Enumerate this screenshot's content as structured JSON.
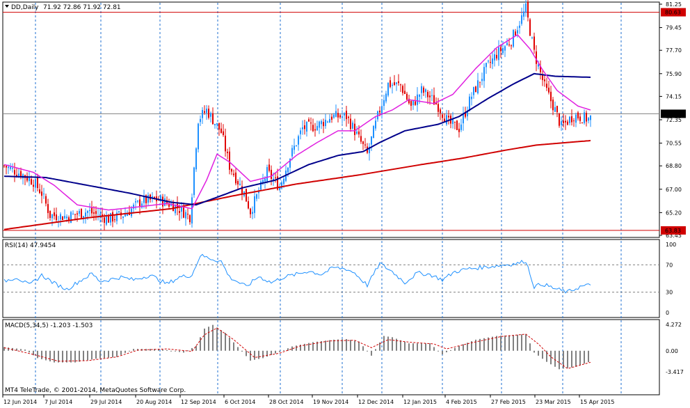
{
  "header": {
    "symbol": "DD,Daily",
    "ohlc": "71.92 72.86 71.92 72.81"
  },
  "copyright": "MT4 TeleTrade, © 2001-2014, MetaQuotes Software Corp.",
  "colors": {
    "bull": "#1e90ff",
    "bear": "#e00000",
    "ma_fast": "#e020e0",
    "ma_mid": "#00008b",
    "ma_slow": "#d00000",
    "rsi": "#1e90ff",
    "macd_hist": "#808080",
    "macd_signal": "#d00000",
    "hline": "#d00000",
    "grid": "#1e6fd0"
  },
  "chart_data": [
    {
      "type": "candlestick",
      "title": "DD,Daily",
      "y_ticks": [
        "81.25",
        "79.45",
        "77.70",
        "75.90",
        "74.15",
        "72.35",
        "70.55",
        "68.80",
        "67.00",
        "65.20",
        "63.45"
      ],
      "ylim": [
        63.45,
        81.25
      ],
      "price_labels": [
        {
          "name": "upper-level",
          "value": "80.63"
        },
        {
          "name": "current-price",
          "value": "72.81"
        },
        {
          "name": "lower-level",
          "value": "63.83"
        }
      ],
      "x_labels": [
        "12 Jun 2014",
        "7 Jul 2014",
        "29 Jul 2014",
        "20 Aug 2014",
        "12 Sep 2014",
        "6 Oct 2014",
        "28 Oct 2014",
        "19 Nov 2014",
        "12 Dec 2014",
        "12 Jan 2015",
        "4 Feb 2015",
        "27 Feb 2015",
        "23 Mar 2015",
        "15 Apr 2015"
      ],
      "price_path": [
        [
          0,
          68.8
        ],
        [
          8,
          68.2
        ],
        [
          14,
          67.6
        ],
        [
          18,
          66.7
        ],
        [
          22,
          65.0
        ],
        [
          30,
          64.9
        ],
        [
          40,
          65.3
        ],
        [
          50,
          64.7
        ],
        [
          58,
          65.1
        ],
        [
          66,
          66.1
        ],
        [
          74,
          66.2
        ],
        [
          82,
          65.7
        ],
        [
          89,
          64.9
        ],
        [
          93,
          72.4
        ],
        [
          97,
          73.1
        ],
        [
          104,
          71.4
        ],
        [
          108,
          68.8
        ],
        [
          115,
          66.7
        ],
        [
          118,
          65.3
        ],
        [
          126,
          68.3
        ],
        [
          132,
          67.2
        ],
        [
          137,
          69.5
        ],
        [
          143,
          71.7
        ],
        [
          150,
          71.9
        ],
        [
          157,
          72.6
        ],
        [
          164,
          72.6
        ],
        [
          167,
          71.8
        ],
        [
          174,
          69.7
        ],
        [
          179,
          72.6
        ],
        [
          184,
          75.1
        ],
        [
          190,
          75.0
        ],
        [
          195,
          73.3
        ],
        [
          200,
          74.6
        ],
        [
          204,
          74.1
        ],
        [
          208,
          73.4
        ],
        [
          213,
          72.1
        ],
        [
          218,
          71.7
        ],
        [
          224,
          74.2
        ],
        [
          231,
          76.3
        ],
        [
          236,
          77.4
        ],
        [
          243,
          78.5
        ],
        [
          250,
          80.9
        ],
        [
          254,
          77.5
        ],
        [
          259,
          74.9
        ],
        [
          264,
          73.1
        ],
        [
          267,
          71.8
        ],
        [
          273,
          72.7
        ],
        [
          280,
          72.4
        ],
        [
          285,
          72.8
        ]
      ],
      "ma_fast_path": [
        [
          0,
          68.9
        ],
        [
          14,
          68.3
        ],
        [
          24,
          67.3
        ],
        [
          35,
          65.8
        ],
        [
          50,
          65.4
        ],
        [
          62,
          65.6
        ],
        [
          78,
          65.9
        ],
        [
          90,
          65.5
        ],
        [
          97,
          67.7
        ],
        [
          102,
          69.7
        ],
        [
          108,
          69.1
        ],
        [
          118,
          67.6
        ],
        [
          128,
          68.0
        ],
        [
          140,
          69.6
        ],
        [
          150,
          70.6
        ],
        [
          160,
          71.5
        ],
        [
          168,
          71.5
        ],
        [
          178,
          72.6
        ],
        [
          186,
          73.1
        ],
        [
          194,
          73.9
        ],
        [
          206,
          73.6
        ],
        [
          215,
          74.3
        ],
        [
          226,
          76.3
        ],
        [
          236,
          77.9
        ],
        [
          246,
          78.9
        ],
        [
          252,
          77.8
        ],
        [
          258,
          76.2
        ],
        [
          265,
          74.6
        ],
        [
          275,
          73.4
        ],
        [
          285,
          72.9
        ]
      ],
      "ma_mid_path": [
        [
          0,
          68.0
        ],
        [
          20,
          67.9
        ],
        [
          40,
          67.3
        ],
        [
          60,
          66.7
        ],
        [
          80,
          66.0
        ],
        [
          92,
          65.8
        ],
        [
          104,
          66.5
        ],
        [
          114,
          67.1
        ],
        [
          130,
          67.7
        ],
        [
          146,
          68.9
        ],
        [
          160,
          69.6
        ],
        [
          172,
          69.9
        ],
        [
          180,
          70.6
        ],
        [
          192,
          71.5
        ],
        [
          208,
          72.0
        ],
        [
          218,
          72.6
        ],
        [
          232,
          74.0
        ],
        [
          244,
          75.1
        ],
        [
          254,
          75.9
        ],
        [
          264,
          75.7
        ],
        [
          285,
          75.6
        ]
      ],
      "ma_slow_path": [
        [
          0,
          63.9
        ],
        [
          40,
          64.8
        ],
        [
          80,
          65.5
        ],
        [
          110,
          66.5
        ],
        [
          140,
          67.4
        ],
        [
          170,
          68.1
        ],
        [
          200,
          68.9
        ],
        [
          220,
          69.4
        ],
        [
          240,
          70.0
        ],
        [
          255,
          70.4
        ],
        [
          270,
          70.6
        ],
        [
          285,
          70.8
        ]
      ],
      "series": [
        {
          "name": "MA fast",
          "role": "ma_fast"
        },
        {
          "name": "MA mid",
          "role": "ma_mid"
        },
        {
          "name": "MA slow",
          "role": "ma_slow"
        }
      ]
    },
    {
      "type": "line",
      "title": "RSI(14) 47.9454",
      "label": "RSI(14)",
      "value": "47.9454",
      "ylim": [
        0,
        100
      ],
      "y_ticks": [
        "100",
        "70",
        "30",
        "0"
      ],
      "levels": [
        70,
        30
      ],
      "rsi_path": [
        [
          0,
          46
        ],
        [
          6,
          52
        ],
        [
          12,
          40
        ],
        [
          18,
          55
        ],
        [
          24,
          43
        ],
        [
          30,
          34
        ],
        [
          36,
          46
        ],
        [
          42,
          57
        ],
        [
          46,
          46
        ],
        [
          50,
          48
        ],
        [
          56,
          52
        ],
        [
          62,
          48
        ],
        [
          70,
          55
        ],
        [
          78,
          42
        ],
        [
          84,
          52
        ],
        [
          90,
          55
        ],
        [
          94,
          84
        ],
        [
          98,
          80
        ],
        [
          104,
          75
        ],
        [
          108,
          52
        ],
        [
          116,
          38
        ],
        [
          122,
          53
        ],
        [
          128,
          44
        ],
        [
          134,
          52
        ],
        [
          140,
          56
        ],
        [
          146,
          61
        ],
        [
          152,
          56
        ],
        [
          158,
          66
        ],
        [
          164,
          64
        ],
        [
          168,
          58
        ],
        [
          174,
          40
        ],
        [
          180,
          72
        ],
        [
          186,
          60
        ],
        [
          192,
          44
        ],
        [
          198,
          58
        ],
        [
          204,
          56
        ],
        [
          210,
          48
        ],
        [
          216,
          60
        ],
        [
          222,
          64
        ],
        [
          228,
          66
        ],
        [
          234,
          68
        ],
        [
          240,
          70
        ],
        [
          246,
          72
        ],
        [
          250,
          76
        ],
        [
          254,
          38
        ],
        [
          258,
          42
        ],
        [
          264,
          35
        ],
        [
          270,
          30
        ],
        [
          276,
          38
        ],
        [
          280,
          40
        ],
        [
          285,
          45
        ]
      ]
    },
    {
      "type": "bar",
      "title": "MACD(5,34,5) -1.203 -1.503",
      "label": "MACD(5,34,5)",
      "value": "-1.203 -1.503",
      "ylim": [
        -3.417,
        4.272
      ],
      "y_ticks": [
        "4.272",
        "0.00",
        "-3.417"
      ],
      "hist_path": [
        [
          0,
          0.6
        ],
        [
          10,
          0.2
        ],
        [
          16,
          -1.2
        ],
        [
          24,
          -1.9
        ],
        [
          34,
          -1.9
        ],
        [
          44,
          -1.3
        ],
        [
          54,
          -1.0
        ],
        [
          62,
          0.3
        ],
        [
          74,
          0.3
        ],
        [
          86,
          -0.3
        ],
        [
          92,
          0.8
        ],
        [
          96,
          3.6
        ],
        [
          100,
          4.2
        ],
        [
          106,
          2.9
        ],
        [
          112,
          0.6
        ],
        [
          118,
          -1.6
        ],
        [
          124,
          -1.2
        ],
        [
          132,
          -0.2
        ],
        [
          138,
          0.7
        ],
        [
          148,
          1.4
        ],
        [
          158,
          1.8
        ],
        [
          164,
          1.9
        ],
        [
          170,
          1.5
        ],
        [
          176,
          -0.8
        ],
        [
          182,
          2.4
        ],
        [
          186,
          2.2
        ],
        [
          194,
          1.2
        ],
        [
          204,
          1.2
        ],
        [
          210,
          -0.6
        ],
        [
          218,
          0.8
        ],
        [
          226,
          1.8
        ],
        [
          236,
          2.4
        ],
        [
          246,
          2.6
        ],
        [
          250,
          2.7
        ],
        [
          254,
          -0.3
        ],
        [
          260,
          -1.8
        ],
        [
          266,
          -3.0
        ],
        [
          274,
          -2.6
        ],
        [
          285,
          -1.2
        ]
      ],
      "signal_path": [
        [
          0,
          0.5
        ],
        [
          14,
          -0.6
        ],
        [
          26,
          -1.7
        ],
        [
          40,
          -1.6
        ],
        [
          54,
          -1.0
        ],
        [
          64,
          0.1
        ],
        [
          78,
          0.3
        ],
        [
          90,
          -0.1
        ],
        [
          96,
          2.6
        ],
        [
          102,
          3.7
        ],
        [
          110,
          1.8
        ],
        [
          120,
          -1.1
        ],
        [
          132,
          -0.4
        ],
        [
          142,
          0.8
        ],
        [
          156,
          1.6
        ],
        [
          168,
          1.7
        ],
        [
          176,
          0.5
        ],
        [
          184,
          1.8
        ],
        [
          194,
          1.4
        ],
        [
          206,
          1.1
        ],
        [
          212,
          0.3
        ],
        [
          224,
          1.3
        ],
        [
          238,
          2.3
        ],
        [
          250,
          2.7
        ],
        [
          256,
          1.1
        ],
        [
          262,
          -1.0
        ],
        [
          270,
          -2.9
        ],
        [
          285,
          -1.5
        ]
      ]
    }
  ]
}
